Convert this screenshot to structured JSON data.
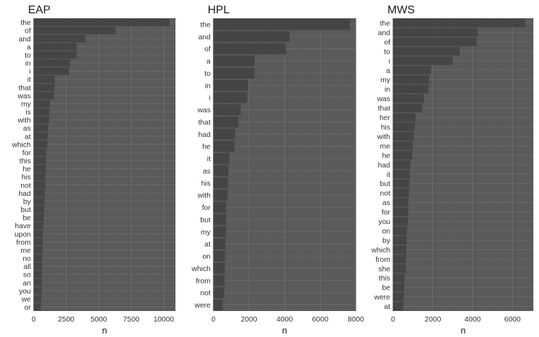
{
  "colors": {
    "panel_bg": "#5a5a5a",
    "bar": "#454545",
    "grid_major": "#6d6d6d",
    "grid_minor": "#636363",
    "text": "#333333"
  },
  "chart_data": [
    {
      "type": "bar",
      "orientation": "horizontal",
      "title": "EAP",
      "xlabel": "n",
      "ylabel": "",
      "xlim": [
        0,
        10900
      ],
      "xticks": [
        0,
        2500,
        5000,
        7500,
        10000
      ],
      "xtick_labels": [
        "0",
        "2500",
        "5000",
        "7500",
        "10000"
      ],
      "grid": true,
      "categories": [
        "the",
        "of",
        "and",
        "a",
        "to",
        "in",
        "i",
        "it",
        "that",
        "was",
        "my",
        "is",
        "with",
        "as",
        "at",
        "which",
        "for",
        "this",
        "he",
        "his",
        "not",
        "had",
        "by",
        "but",
        "be",
        "have",
        "upon",
        "from",
        "me",
        "no",
        "all",
        "so",
        "an",
        "you",
        "we",
        "or"
      ],
      "values": [
        10450,
        6300,
        3950,
        3300,
        3300,
        2800,
        2700,
        1620,
        1600,
        1550,
        1250,
        1200,
        1180,
        1100,
        1080,
        1050,
        970,
        930,
        920,
        900,
        900,
        850,
        840,
        800,
        780,
        740,
        720,
        700,
        680,
        650,
        640,
        630,
        620,
        600,
        580,
        560
      ]
    },
    {
      "type": "bar",
      "orientation": "horizontal",
      "title": "HPL",
      "xlabel": "n",
      "ylabel": "",
      "xlim": [
        0,
        8000
      ],
      "xticks": [
        0,
        2000,
        4000,
        6000,
        8000
      ],
      "xtick_labels": [
        "0",
        "2000",
        "4000",
        "6000",
        "8000"
      ],
      "grid": true,
      "categories": [
        "the",
        "and",
        "of",
        "a",
        "to",
        "in",
        "i",
        "was",
        "that",
        "had",
        "he",
        "it",
        "as",
        "his",
        "with",
        "for",
        "but",
        "my",
        "at",
        "on",
        "which",
        "from",
        "not",
        "were"
      ],
      "values": [
        7680,
        4280,
        4080,
        2320,
        2320,
        1960,
        1900,
        1540,
        1400,
        1230,
        1190,
        900,
        840,
        820,
        800,
        720,
        720,
        700,
        680,
        660,
        650,
        640,
        610,
        520
      ]
    },
    {
      "type": "bar",
      "orientation": "horizontal",
      "title": "MWS",
      "xlabel": "n",
      "ylabel": "",
      "xlim": [
        0,
        7050
      ],
      "xticks": [
        0,
        2000,
        4000,
        6000
      ],
      "xtick_labels": [
        "0",
        "2000",
        "4000",
        "6000"
      ],
      "grid": true,
      "categories": [
        "the",
        "and",
        "of",
        "to",
        "i",
        "a",
        "my",
        "in",
        "was",
        "that",
        "her",
        "his",
        "with",
        "me",
        "he",
        "had",
        "it",
        "but",
        "not",
        "as",
        "for",
        "you",
        "on",
        "by",
        "which",
        "from",
        "she",
        "this",
        "be",
        "were",
        "at"
      ],
      "values": [
        6650,
        4250,
        4200,
        3350,
        3000,
        1900,
        1820,
        1780,
        1550,
        1450,
        1130,
        1100,
        1050,
        1000,
        980,
        870,
        830,
        820,
        800,
        770,
        760,
        740,
        700,
        680,
        670,
        650,
        640,
        580,
        560,
        540,
        510
      ]
    }
  ]
}
